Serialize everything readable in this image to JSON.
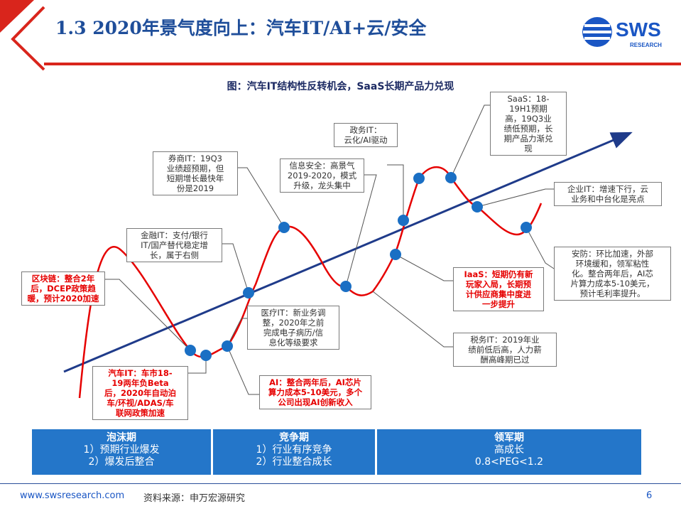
{
  "header": {
    "title": "1.3 2020年景气度向上：汽车IT/AI+云/安全",
    "logo_text": "SWS",
    "logo_sub": "RESEARCH"
  },
  "chart_title": "图：汽车IT结构性反转机会，SaaS长期产品力兑现",
  "annotations": [
    {
      "id": "blockchain",
      "lines": [
        "区块链：整合2年",
        "后，DCEP政策趋",
        "暖，预计2020加速"
      ]
    },
    {
      "id": "finance",
      "head": "金融IT",
      "lines": [
        "金融IT：支付/银行",
        "IT/国产替代稳定增",
        "长，属于右侧"
      ]
    },
    {
      "id": "broker",
      "lines": [
        "券商IT：19Q3",
        "业绩超预期，但",
        "短期增长最快年",
        "份是2019"
      ]
    },
    {
      "id": "infosec",
      "lines": [
        "信息安全：高景气",
        "2019-2020，模式",
        "升级，龙头集中"
      ]
    },
    {
      "id": "gov",
      "lines": [
        "政务IT：",
        "云化/AI驱动"
      ]
    },
    {
      "id": "saas",
      "lines": [
        "SaaS：18-",
        "19H1预期",
        "高，19Q3业",
        "绩低预期，长",
        "期产品力渐兑",
        "现"
      ]
    },
    {
      "id": "enterprise",
      "lines": [
        "企业IT：增速下行，云",
        "业务和中台化是亮点"
      ]
    },
    {
      "id": "security",
      "lines": [
        "安防：环比加速，外部",
        "环境缓和，领军粘性",
        "化。整合两年后，AI芯",
        "片算力成本5-10美元，",
        "预计毛利率提升。"
      ]
    },
    {
      "id": "iaas",
      "lines": [
        "IaaS：短期仍有新",
        "玩家入局，长期预",
        "计供应商集中度进",
        "一步提升"
      ]
    },
    {
      "id": "tax",
      "lines": [
        "税务IT：2019年业",
        "绩前低后高，人力薪",
        "酬高峰期已过"
      ]
    },
    {
      "id": "medical",
      "lines": [
        "医疗IT：新业务调",
        "整，2020年之前",
        "完成电子病历/信",
        "息化等级要求"
      ]
    },
    {
      "id": "ai",
      "lines": [
        "AI：整合两年后，AI芯片",
        "算力成本5-10美元，多个",
        "公司出现AI创新收入"
      ]
    },
    {
      "id": "auto",
      "lines": [
        "汽车IT：车市18-",
        "19两年负Beta",
        "后，2020年自动泊",
        "车/环视/ADAS/车",
        "联网政策加速"
      ]
    }
  ],
  "stages": [
    {
      "title": "泡沫期",
      "lines": [
        "1）预期行业爆发",
        "2）爆发后整合"
      ]
    },
    {
      "title": "竞争期",
      "lines": [
        "1）行业有序竞争",
        "2）行业整合成长"
      ]
    },
    {
      "title": "领军期",
      "lines": [
        "高成长",
        "0.8<PEG<1.2"
      ]
    }
  ],
  "footer": {
    "url": "www.swsresearch.com",
    "source": "资料来源：申万宏源研究",
    "page": "6"
  },
  "colors": {
    "curve": "#e60000",
    "trend": "#1f3b8a",
    "dot": "#1a6fc4",
    "stage_bg": "#2476c9",
    "title": "#1f4e9a",
    "header_red": "#d9251c"
  }
}
